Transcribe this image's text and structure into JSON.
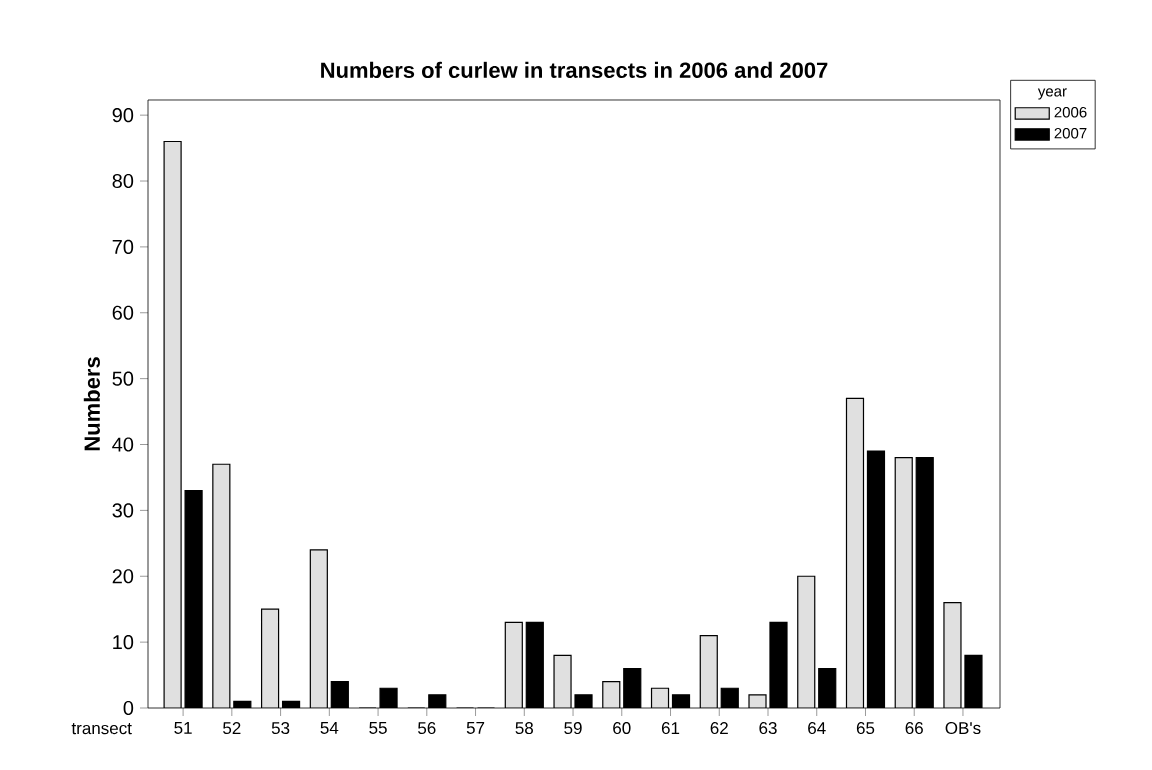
{
  "chart_data": {
    "type": "bar",
    "title": "Numbers of curlew in transects in 2006 and 2007",
    "xlabel": "transect",
    "ylabel": "Numbers",
    "legend_title": "year",
    "legend": "top right",
    "categories": [
      "51",
      "52",
      "53",
      "54",
      "55",
      "56",
      "57",
      "58",
      "59",
      "60",
      "61",
      "62",
      "63",
      "64",
      "65",
      "66",
      "OB's"
    ],
    "series": [
      {
        "name": "2006",
        "color": "#e0e0e0",
        "values": [
          86,
          37,
          15,
          24,
          0,
          0,
          0,
          13,
          8,
          4,
          3,
          11,
          2,
          20,
          47,
          38,
          16
        ]
      },
      {
        "name": "2007",
        "color": "#000000",
        "values": [
          33,
          1,
          1,
          4,
          3,
          2,
          0,
          13,
          2,
          6,
          2,
          3,
          13,
          6,
          39,
          38,
          8
        ]
      }
    ],
    "ylim": [
      0,
      92.3
    ],
    "yticks": [
      0,
      10,
      20,
      30,
      40,
      50,
      60,
      70,
      80,
      90
    ]
  }
}
